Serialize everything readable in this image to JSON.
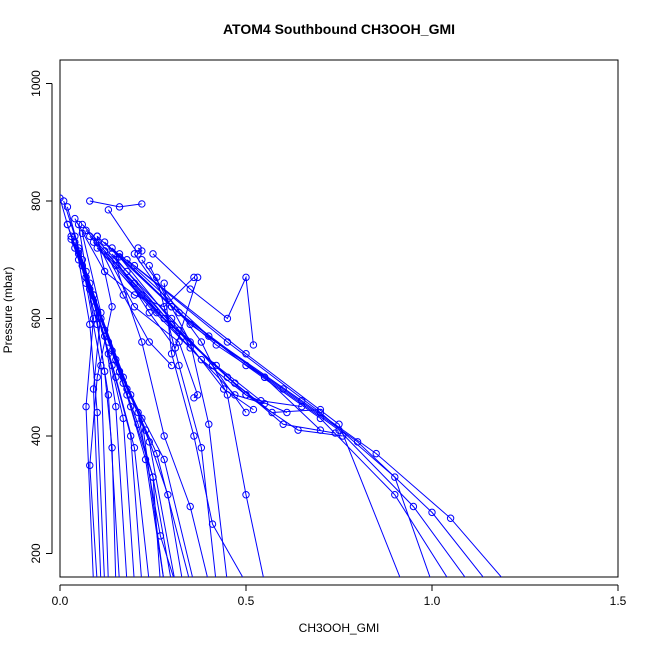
{
  "chart_data": {
    "type": "line",
    "title": "ATOM4 Southbound CH3OOH_GMI",
    "xlabel": "CH3OOH_GMI",
    "ylabel": "Pressure (mbar)",
    "xlim": [
      0,
      1.5
    ],
    "ylim": [
      1040,
      160
    ],
    "y_axis_inverted": true,
    "grid": false,
    "legend": "none",
    "marker": "open-circle",
    "color": "#0000ff",
    "x_ticks": [
      {
        "value": 0,
        "label": "0.0"
      },
      {
        "value": 0.5,
        "label": "0.5"
      },
      {
        "value": 1.0,
        "label": "1.0"
      },
      {
        "value": 1.5,
        "label": "1.5"
      }
    ],
    "y_ticks": [
      {
        "value": 200,
        "label": "200"
      },
      {
        "value": 400,
        "label": "400"
      },
      {
        "value": 600,
        "label": "600"
      },
      {
        "value": 800,
        "label": "800"
      },
      {
        "value": 1000,
        "label": "1000"
      }
    ],
    "series": [
      {
        "x": [
          0.0,
          0.02,
          0.05,
          0.08,
          0.1,
          0.12
        ],
        "y": [
          805,
          760,
          700,
          590,
          440,
          150
        ]
      },
      {
        "x": [
          0.01,
          0.04,
          0.07,
          0.11,
          0.13
        ],
        "y": [
          800,
          740,
          660,
          520,
          150
        ]
      },
      {
        "x": [
          0.02,
          0.05,
          0.09,
          0.12,
          0.14,
          0.15
        ],
        "y": [
          790,
          720,
          640,
          510,
          380,
          150
        ]
      },
      {
        "x": [
          0.02,
          0.06,
          0.1,
          0.13,
          0.16
        ],
        "y": [
          760,
          690,
          590,
          470,
          150
        ]
      },
      {
        "x": [
          0.03,
          0.07,
          0.12,
          0.15,
          0.18
        ],
        "y": [
          740,
          670,
          570,
          450,
          150
        ]
      },
      {
        "x": [
          0.03,
          0.08,
          0.13,
          0.17,
          0.2
        ],
        "y": [
          735,
          650,
          540,
          430,
          150
        ]
      },
      {
        "x": [
          0.04,
          0.09,
          0.14,
          0.19,
          0.22
        ],
        "y": [
          730,
          630,
          520,
          400,
          150
        ]
      },
      {
        "x": [
          0.04,
          0.1,
          0.15,
          0.2,
          0.24
        ],
        "y": [
          720,
          610,
          500,
          380,
          150
        ]
      },
      {
        "x": [
          0.05,
          0.11,
          0.17,
          0.21,
          0.25,
          0.27
        ],
        "y": [
          715,
          600,
          490,
          420,
          330,
          150
        ]
      },
      {
        "x": [
          0.05,
          0.12,
          0.18,
          0.23,
          0.28
        ],
        "y": [
          710,
          580,
          470,
          360,
          150
        ]
      },
      {
        "x": [
          0.06,
          0.13,
          0.19,
          0.25,
          0.3
        ],
        "y": [
          700,
          560,
          450,
          330,
          150
        ]
      },
      {
        "x": [
          0.06,
          0.14,
          0.21,
          0.27,
          0.31
        ],
        "y": [
          690,
          545,
          440,
          230,
          150
        ]
      },
      {
        "x": [
          0.07,
          0.15,
          0.22,
          0.28
        ],
        "y": [
          680,
          530,
          430,
          150
        ]
      },
      {
        "x": [
          0.07,
          0.16,
          0.23,
          0.29,
          0.33
        ],
        "y": [
          670,
          510,
          410,
          300,
          150
        ]
      },
      {
        "x": [
          0.08,
          0.17,
          0.24,
          0.31
        ],
        "y": [
          660,
          500,
          390,
          150
        ]
      },
      {
        "x": [
          0.08,
          0.18,
          0.26,
          0.35
        ],
        "y": [
          650,
          480,
          370,
          150
        ]
      },
      {
        "x": [
          0.09,
          0.19,
          0.28,
          0.36
        ],
        "y": [
          640,
          470,
          360,
          150
        ]
      },
      {
        "x": [
          0.1,
          0.14,
          0.1,
          0.08,
          0.1
        ],
        "y": [
          740,
          620,
          500,
          350,
          150
        ]
      },
      {
        "x": [
          0.05,
          0.09,
          0.07,
          0.09
        ],
        "y": [
          760,
          600,
          450,
          150
        ]
      },
      {
        "x": [
          0.06,
          0.11,
          0.09,
          0.11
        ],
        "y": [
          745,
          610,
          480,
          150
        ]
      },
      {
        "x": [
          0.12,
          0.2,
          0.32,
          0.37,
          0.36
        ],
        "y": [
          715,
          620,
          560,
          470,
          465
        ]
      },
      {
        "x": [
          0.1,
          0.17,
          0.24,
          0.3
        ],
        "y": [
          730,
          640,
          560,
          520
        ]
      },
      {
        "x": [
          0.15,
          0.24,
          0.31,
          0.37
        ],
        "y": [
          700,
          610,
          550,
          670
        ]
      },
      {
        "x": [
          0.13,
          0.21,
          0.22,
          0.21
        ],
        "y": [
          785,
          710,
          715,
          720
        ]
      },
      {
        "x": [
          0.08,
          0.16,
          0.22
        ],
        "y": [
          800,
          790,
          795
        ]
      },
      {
        "x": [
          0.04,
          0.12,
          0.2,
          0.28,
          0.36
        ],
        "y": [
          770,
          680,
          640,
          620,
          670
        ]
      },
      {
        "x": [
          0.06,
          0.18,
          0.3,
          0.41,
          0.5
        ],
        "y": [
          760,
          680,
          600,
          520,
          440
        ]
      },
      {
        "x": [
          0.07,
          0.2,
          0.33,
          0.44,
          0.52
        ],
        "y": [
          750,
          660,
          570,
          480,
          445
        ]
      },
      {
        "x": [
          0.08,
          0.22,
          0.35,
          0.47,
          0.55
        ],
        "y": [
          740,
          640,
          550,
          470,
          455
        ]
      },
      {
        "x": [
          0.09,
          0.24,
          0.38,
          0.5,
          0.61
        ],
        "y": [
          730,
          620,
          530,
          470,
          440
        ]
      },
      {
        "x": [
          0.1,
          0.26,
          0.42,
          0.54,
          0.65
        ],
        "y": [
          720,
          610,
          520,
          460,
          450
        ]
      },
      {
        "x": [
          0.12,
          0.28,
          0.45,
          0.57,
          0.7
        ],
        "y": [
          715,
          600,
          500,
          440,
          445
        ]
      },
      {
        "x": [
          0.14,
          0.3,
          0.47,
          0.6,
          0.74
        ],
        "y": [
          710,
          590,
          490,
          420,
          405
        ]
      },
      {
        "x": [
          0.16,
          0.32,
          0.5,
          0.64,
          0.76
        ],
        "y": [
          705,
          580,
          470,
          410,
          400
        ]
      },
      {
        "x": [
          0.25,
          0.35,
          0.45,
          0.5,
          0.52
        ],
        "y": [
          710,
          650,
          600,
          670,
          555
        ]
      },
      {
        "x": [
          0.2,
          0.3,
          0.42,
          0.55,
          0.7
        ],
        "y": [
          710,
          620,
          555,
          500,
          410
        ]
      },
      {
        "x": [
          0.1,
          0.3,
          0.5,
          0.7,
          0.9,
          1.05
        ],
        "y": [
          740,
          620,
          520,
          430,
          300,
          150
        ]
      },
      {
        "x": [
          0.12,
          0.32,
          0.55,
          0.75,
          0.95,
          1.1
        ],
        "y": [
          730,
          610,
          500,
          410,
          280,
          150
        ]
      },
      {
        "x": [
          0.14,
          0.35,
          0.6,
          0.8,
          1.0,
          1.15
        ],
        "y": [
          720,
          590,
          480,
          390,
          270,
          150
        ]
      },
      {
        "x": [
          0.16,
          0.4,
          0.65,
          0.85,
          1.05,
          1.2
        ],
        "y": [
          710,
          570,
          460,
          370,
          260,
          150
        ]
      },
      {
        "x": [
          0.18,
          0.45,
          0.7,
          0.9,
          1.0
        ],
        "y": [
          700,
          560,
          440,
          330,
          150
        ]
      },
      {
        "x": [
          0.2,
          0.5,
          0.75,
          0.92
        ],
        "y": [
          690,
          540,
          420,
          150
        ]
      },
      {
        "x": [
          0.22,
          0.38,
          0.45,
          0.5,
          0.55
        ],
        "y": [
          700,
          560,
          470,
          300,
          150
        ]
      },
      {
        "x": [
          0.24,
          0.35,
          0.4,
          0.45
        ],
        "y": [
          690,
          560,
          420,
          150
        ]
      },
      {
        "x": [
          0.26,
          0.32,
          0.38,
          0.42
        ],
        "y": [
          670,
          520,
          380,
          150
        ]
      },
      {
        "x": [
          0.28,
          0.3,
          0.36,
          0.41,
          0.5
        ],
        "y": [
          660,
          540,
          400,
          250,
          150
        ]
      },
      {
        "x": [
          0.15,
          0.22,
          0.28,
          0.35,
          0.4
        ],
        "y": [
          690,
          560,
          400,
          280,
          150
        ]
      }
    ]
  }
}
